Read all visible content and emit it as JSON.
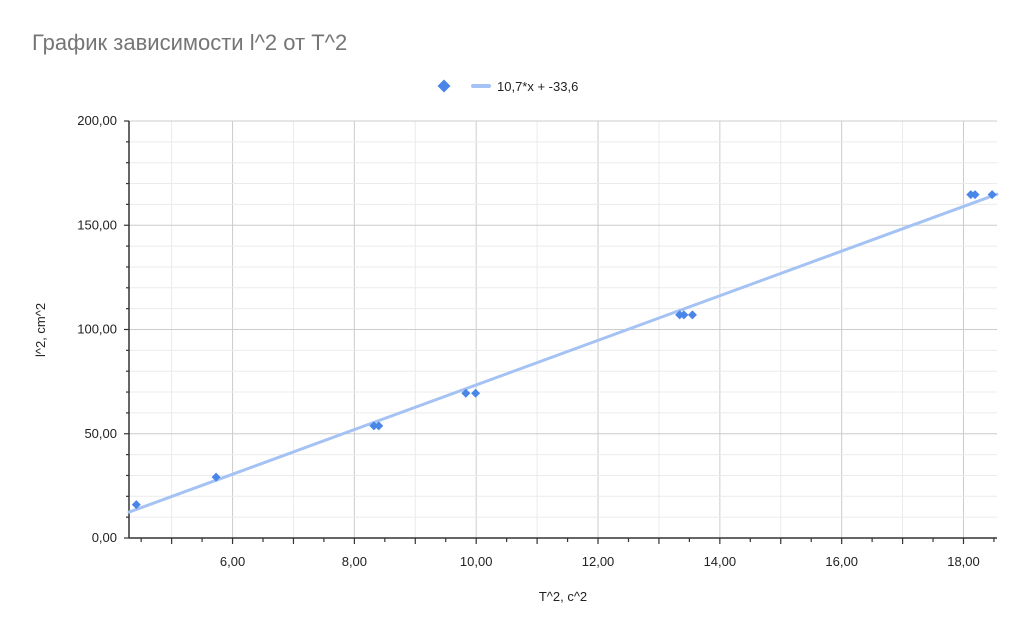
{
  "chart_data": {
    "type": "scatter",
    "title": "График зависимости l^2 от T^2",
    "xlabel": "T^2, c^2",
    "ylabel": "l^2, cm^2",
    "xlim": [
      4.3,
      18.55
    ],
    "ylim": [
      0,
      200
    ],
    "x_ticks": [
      6,
      8,
      10,
      12,
      14,
      16,
      18
    ],
    "x_tick_labels": [
      "6,00",
      "8,00",
      "10,00",
      "12,00",
      "14,00",
      "16,00",
      "18,00"
    ],
    "y_ticks": [
      0,
      50,
      100,
      150,
      200
    ],
    "y_tick_labels": [
      "0,00",
      "50,00",
      "100,00",
      "150,00",
      "200,00"
    ],
    "grid": true,
    "legend_position": "top",
    "series": [
      {
        "type": "scatter",
        "marker": "diamond",
        "color": "#4a86e8",
        "points": [
          {
            "x": 4.42,
            "y": 16.0
          },
          {
            "x": 5.73,
            "y": 29.2
          },
          {
            "x": 8.32,
            "y": 53.8
          },
          {
            "x": 8.4,
            "y": 53.8
          },
          {
            "x": 9.83,
            "y": 69.4
          },
          {
            "x": 9.99,
            "y": 69.4
          },
          {
            "x": 13.34,
            "y": 107.0
          },
          {
            "x": 13.41,
            "y": 107.0
          },
          {
            "x": 13.55,
            "y": 107.0
          },
          {
            "x": 18.12,
            "y": 164.7
          },
          {
            "x": 18.19,
            "y": 164.7
          },
          {
            "x": 18.47,
            "y": 164.7
          }
        ]
      },
      {
        "type": "trendline",
        "name": "10,7*x + -33,6",
        "color": "#a4c2f4",
        "slope": 10.7,
        "intercept": -33.6
      }
    ]
  }
}
